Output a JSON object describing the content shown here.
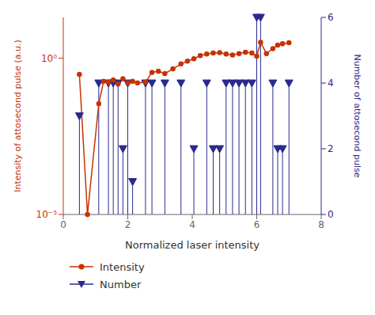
{
  "chart_data": {
    "type": "line",
    "xlabel": "Normalized laser intensity",
    "ylabel": "Intensity of attosecond pulse (a.u.)",
    "y2label": "Number of attosecond pulse",
    "log": "y",
    "grid": false,
    "legend": "lower left",
    "xlim": [
      0,
      8
    ],
    "xticks": [
      0,
      2,
      4,
      6,
      8
    ],
    "ylim": [
      1e-05,
      20
    ],
    "yticks": [
      {
        "value": 1e-05,
        "label": "10⁻⁵"
      },
      {
        "value": 1,
        "label": "10⁰"
      }
    ],
    "y2lim": [
      0,
      6
    ],
    "y2ticks": [
      0,
      2,
      4,
      6
    ],
    "series": [
      {
        "name": "Intensity",
        "type": "line",
        "marker": "circle",
        "color": "#c83200",
        "x": [
          0.5,
          0.75,
          1.1,
          1.25,
          1.4,
          1.55,
          1.7,
          1.85,
          2.0,
          2.15,
          2.3,
          2.55,
          2.75,
          2.95,
          3.15,
          3.4,
          3.65,
          3.85,
          4.05,
          4.25,
          4.45,
          4.65,
          4.85,
          5.05,
          5.25,
          5.45,
          5.65,
          5.85,
          6.0,
          6.12,
          6.3,
          6.5,
          6.65,
          6.8,
          7.0
        ],
        "values": [
          0.3,
          1e-05,
          0.035,
          0.18,
          0.17,
          0.2,
          0.15,
          0.22,
          0.16,
          0.18,
          0.16,
          0.17,
          0.35,
          0.38,
          0.32,
          0.45,
          0.65,
          0.8,
          0.95,
          1.2,
          1.35,
          1.45,
          1.5,
          1.35,
          1.25,
          1.4,
          1.55,
          1.45,
          1.15,
          3.2,
          1.4,
          2.0,
          2.6,
          2.9,
          3.1
        ]
      },
      {
        "name": "Number",
        "type": "stem",
        "marker": "triangle-down",
        "axis": "y2",
        "color": "#2a2a8c",
        "x": [
          0.5,
          1.1,
          1.4,
          1.55,
          1.7,
          1.85,
          2.0,
          2.15,
          2.55,
          2.75,
          3.15,
          3.65,
          4.05,
          4.45,
          4.65,
          4.85,
          5.05,
          5.25,
          5.45,
          5.65,
          5.85,
          6.0,
          6.12,
          6.5,
          6.65,
          6.8,
          7.0
        ],
        "values": [
          3,
          4,
          4,
          4,
          4,
          2,
          4,
          1,
          4,
          4,
          4,
          4,
          2,
          4,
          2,
          2,
          4,
          4,
          4,
          4,
          4,
          6,
          6,
          4,
          2,
          2,
          4
        ]
      }
    ]
  }
}
